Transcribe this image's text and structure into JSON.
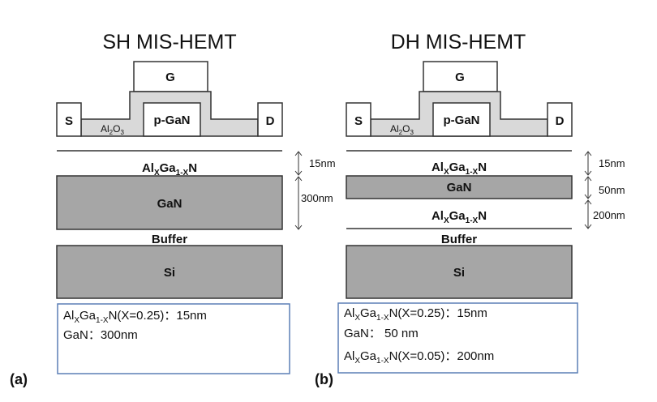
{
  "colors": {
    "stroke": "#333333",
    "dielectric": "#d9d9d9",
    "gan_fill": "#a6a6a6",
    "box_border": "#5b7fb5",
    "text": "#111111"
  },
  "panels": [
    {
      "title": "SH MIS-HEMT",
      "label": "(a)",
      "gate": "G",
      "source": "S",
      "drain": "D",
      "cap": "p-GaN",
      "dielectric": {
        "main": "Al",
        "sub1": "2",
        "mid": "O",
        "sub2": "3"
      },
      "layers": [
        {
          "main": "Al",
          "sub1": "X",
          "mid": "Ga",
          "sub2": "1-X",
          "tail": "N"
        },
        {
          "main": "GaN"
        },
        {
          "main": "Buffer"
        },
        {
          "main": "Si"
        }
      ],
      "dims": [
        "15nm",
        "300nm"
      ],
      "legend": [
        {
          "main": "Al",
          "sub1": "X",
          "mid": "Ga",
          "sub2": "1-X",
          "tail": "N(X=0.25)：15nm"
        },
        {
          "main": "GaN：300nm"
        }
      ]
    },
    {
      "title": "DH MIS-HEMT",
      "label": "(b)",
      "gate": "G",
      "source": "S",
      "drain": "D",
      "cap": "p-GaN",
      "dielectric": {
        "main": "Al",
        "sub1": "2",
        "mid": "O",
        "sub2": "3"
      },
      "layers": [
        {
          "main": "Al",
          "sub1": "X",
          "mid": "Ga",
          "sub2": "1-X",
          "tail": "N"
        },
        {
          "main": "GaN"
        },
        {
          "main": "Al",
          "sub1": "X",
          "mid": "Ga",
          "sub2": "1-X",
          "tail": "N"
        },
        {
          "main": "Buffer"
        },
        {
          "main": "Si"
        }
      ],
      "dims": [
        "15nm",
        "50nm",
        "200nm"
      ],
      "legend": [
        {
          "main": "Al",
          "sub1": "X",
          "mid": "Ga",
          "sub2": "1-X",
          "tail": "N(X=0.25)：15nm"
        },
        {
          "main": "GaN： 50 nm"
        },
        {
          "main": "Al",
          "sub1": "X",
          "mid": "Ga",
          "sub2": "1-X",
          "tail": "N(X=0.05)：200nm"
        }
      ]
    }
  ]
}
